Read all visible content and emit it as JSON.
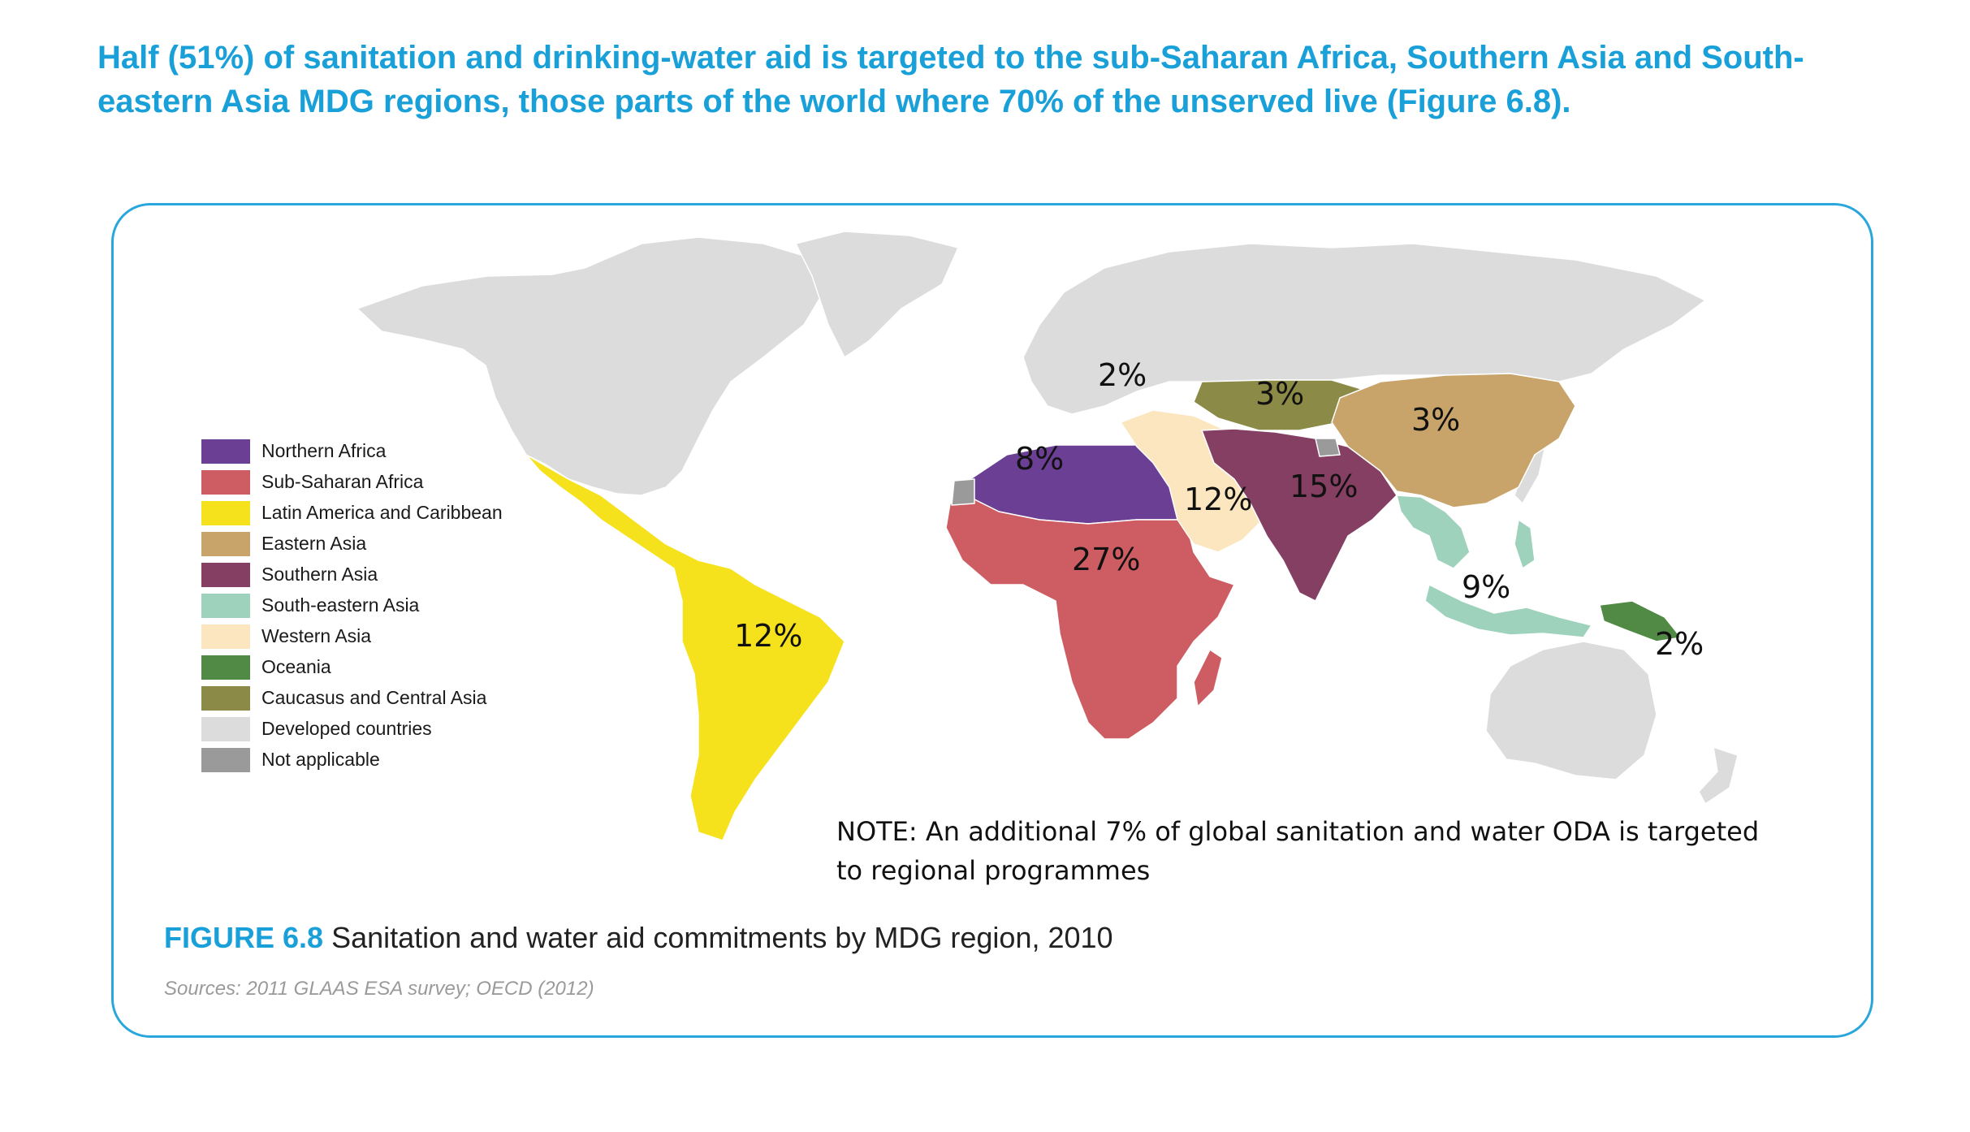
{
  "headline": "Half (51%) of sanitation and drinking-water aid is targeted to the sub-Saharan Africa, Southern Asia and South-eastern Asia MDG regions, those parts of the world where 70% of the unserved live (Figure 6.8).",
  "legend": [
    {
      "label": "Northern Africa",
      "color": "#6b3f94"
    },
    {
      "label": "Sub-Saharan Africa",
      "color": "#cd5d62"
    },
    {
      "label": "Latin America and Caribbean",
      "color": "#f5e21c"
    },
    {
      "label": "Eastern Asia",
      "color": "#c8a46b"
    },
    {
      "label": "Southern Asia",
      "color": "#843f62"
    },
    {
      "label": "South-eastern Asia",
      "color": "#9fd2bc"
    },
    {
      "label": "Western Asia",
      "color": "#fbe6bf"
    },
    {
      "label": "Oceania",
      "color": "#518a45"
    },
    {
      "label": "Caucasus and Central Asia",
      "color": "#8b8a46"
    },
    {
      "label": "Developed countries",
      "color": "#dcdcdc"
    },
    {
      "label": "Not applicable",
      "color": "#9a9a9a"
    }
  ],
  "map_labels": {
    "developed": "2%",
    "caucasus_central_asia": "3%",
    "eastern_asia": "3%",
    "northern_africa": "8%",
    "western_asia": "12%",
    "southern_asia": "15%",
    "sub_saharan_africa": "27%",
    "south_eastern_asia": "9%",
    "latin_america": "12%",
    "oceania": "2%"
  },
  "note": "NOTE: An additional 7% of global sanitation and water ODA is targeted to regional programmes",
  "caption": {
    "figure_number": "FIGURE 6.8",
    "title": "Sanitation and water aid commitments by MDG region, 2010"
  },
  "sources": "Sources: 2011 GLAAS ESA survey; OECD (2012)"
}
